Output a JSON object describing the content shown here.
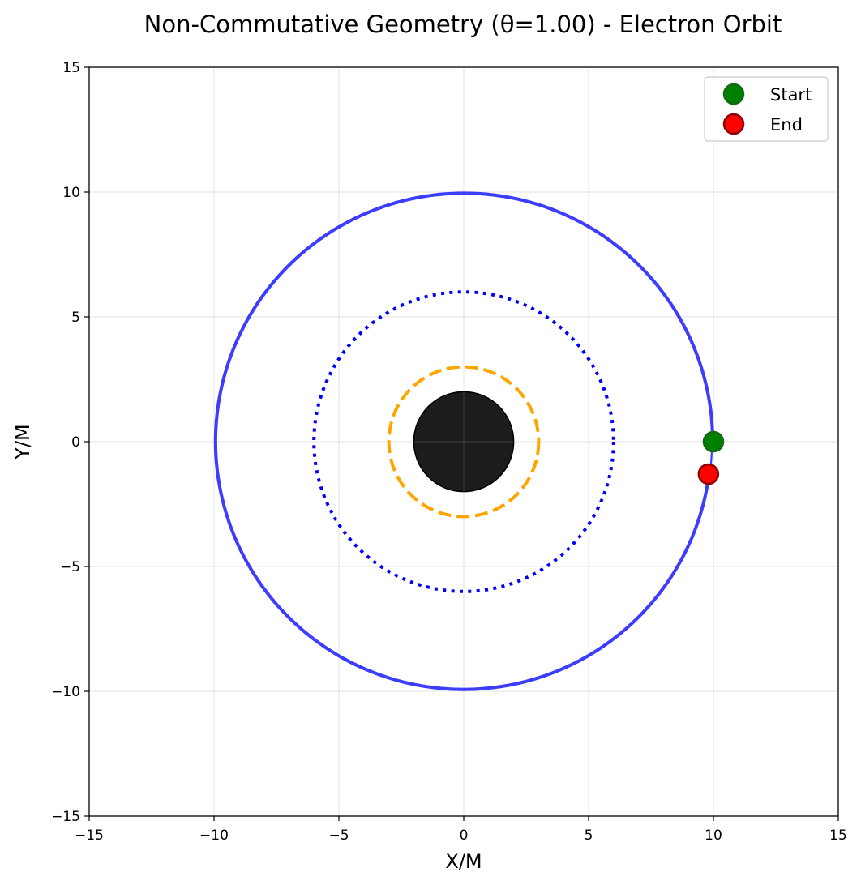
{
  "chart_data": {
    "type": "scatter",
    "title": "Non-Commutative Geometry (θ=1.00) - Electron Orbit",
    "xlabel": "X/M",
    "ylabel": "Y/M",
    "xlim": [
      -15,
      15
    ],
    "ylim": [
      -15,
      15
    ],
    "xticks": [
      -15,
      -10,
      -5,
      0,
      5,
      10,
      15
    ],
    "yticks": [
      -15,
      -10,
      -5,
      0,
      5,
      10,
      15
    ],
    "xtick_labels": [
      "−15",
      "−10",
      "−5",
      "0",
      "5",
      "10",
      "15"
    ],
    "ytick_labels": [
      "−15",
      "−10",
      "−5",
      "0",
      "5",
      "10",
      "15"
    ],
    "grid": true,
    "legend_position": "top-right",
    "black_hole": {
      "center": [
        0,
        0
      ],
      "radius": 2.0,
      "color": "#1c1c1c"
    },
    "circles": [
      {
        "radius": 3.0,
        "style": "dashed",
        "color": "#ffa500"
      },
      {
        "radius": 6.0,
        "style": "dotted",
        "color": "#0000ff"
      }
    ],
    "orbit": {
      "color": "#3333ff",
      "center": [
        0,
        0
      ],
      "radius_start": 10.0,
      "radius_end": 9.88,
      "angle_start_deg": 0,
      "angle_end_deg": -7.6,
      "revolutions": 2
    },
    "points": [
      {
        "name": "Start",
        "x": 10.0,
        "y": 0.0,
        "color": "#008000",
        "edge": "#0f6b0f"
      },
      {
        "name": "End",
        "x": 9.8,
        "y": -1.3,
        "color": "#ff0000",
        "edge": "#8b0000"
      }
    ],
    "legend": [
      "Start",
      "End"
    ]
  }
}
